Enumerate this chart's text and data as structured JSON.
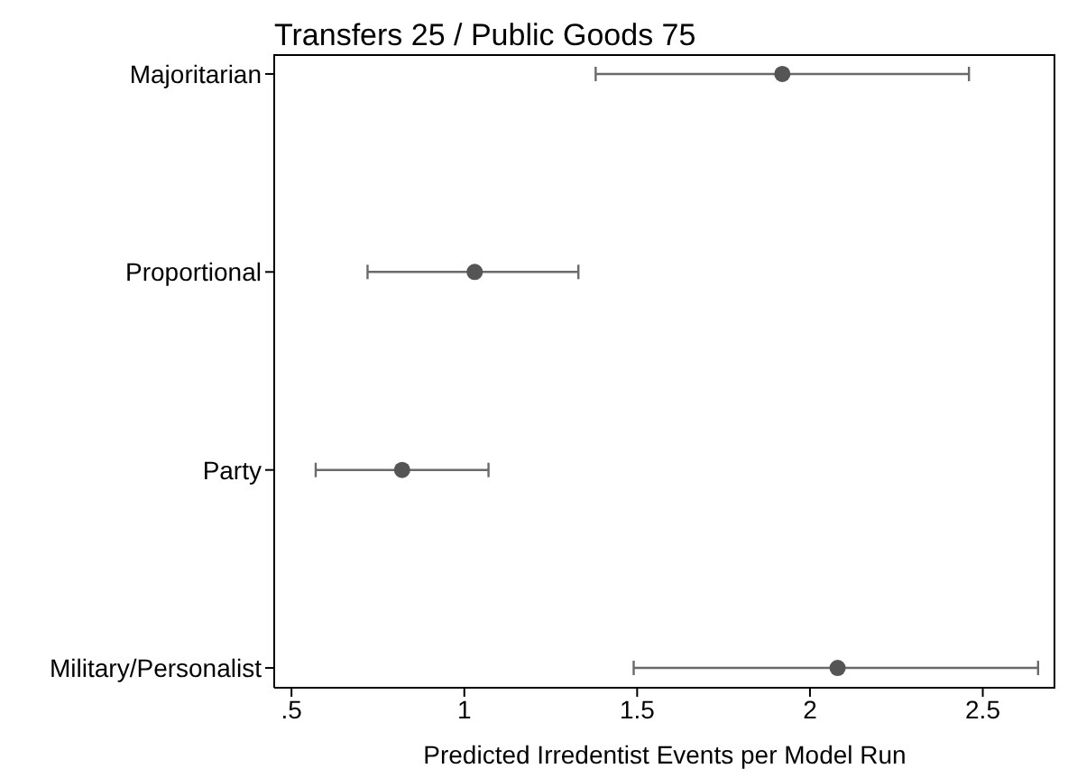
{
  "chart_data": {
    "type": "scatter",
    "orientation": "horizontal",
    "title": "Transfers 25 / Public Goods 75",
    "xlabel": "Predicted Irredentist Events per Model Run",
    "categories": [
      "Majoritarian",
      "Proportional",
      "Party",
      "Military/Personalist"
    ],
    "values": [
      1.92,
      1.03,
      0.82,
      2.08
    ],
    "errors": [
      [
        1.38,
        2.46
      ],
      [
        0.72,
        1.33
      ],
      [
        0.57,
        1.07
      ],
      [
        1.49,
        2.66
      ]
    ],
    "color": "#555555",
    "marker": "circle",
    "xlim": [
      0.45,
      2.71
    ],
    "xticks": [
      {
        "value": 0.5,
        "label": ".5"
      },
      1,
      1.5,
      2,
      2.5
    ],
    "grid": false,
    "legend": false
  }
}
